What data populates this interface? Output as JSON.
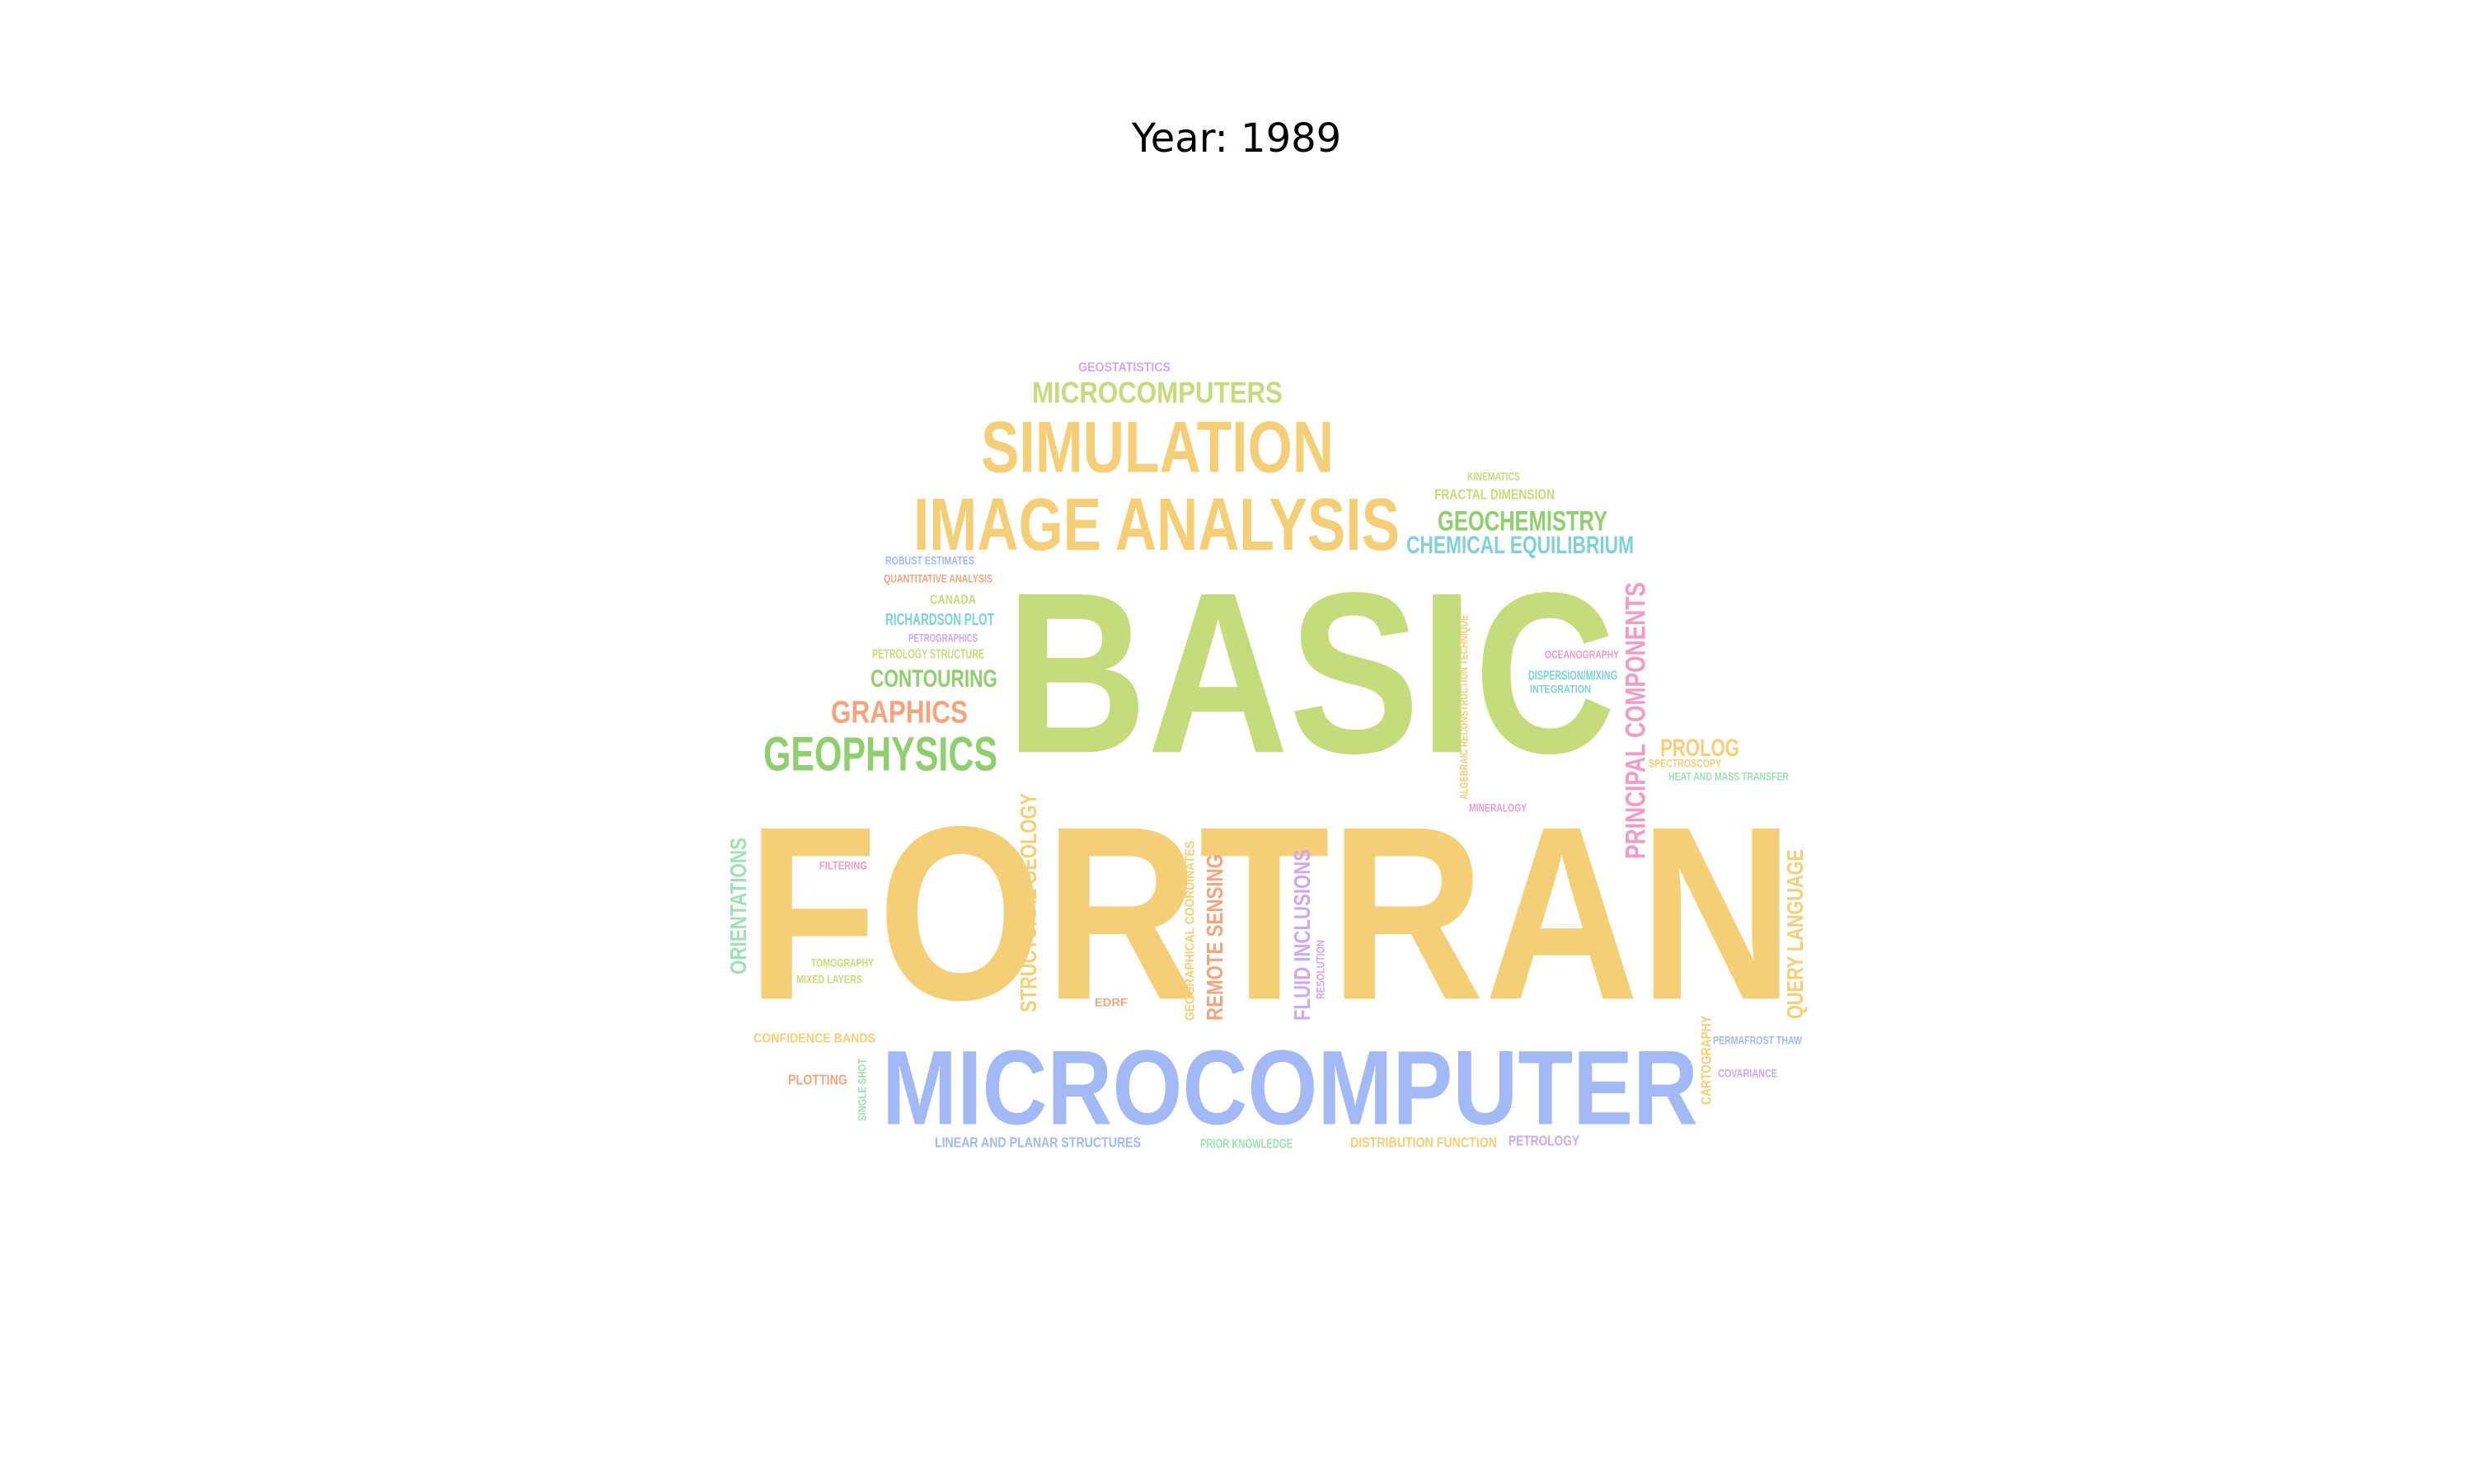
{
  "title": "Year: 1989",
  "palette": {
    "green": "#c5dc7c",
    "yellow": "#f5cf77",
    "blue": "#a3b9f5",
    "dkgreen": "#8fcf6e",
    "orange": "#f5a47d",
    "teal": "#7fd0d8",
    "pink": "#f49ac7",
    "purple": "#cfa7f2",
    "mint": "#9fe0b4"
  },
  "words": [
    {
      "text": "FORTRAN",
      "color": "yellow"
    },
    {
      "text": "BASIC",
      "color": "green"
    },
    {
      "text": "MICROCOMPUTER",
      "color": "blue"
    },
    {
      "text": "IMAGE ANALYSIS",
      "color": "yellow"
    },
    {
      "text": "SIMULATION",
      "color": "yellow"
    },
    {
      "text": "MICROCOMPUTERS",
      "color": "green"
    },
    {
      "text": "GEOSTATISTICS",
      "color": "purple"
    },
    {
      "text": "GEOPHYSICS",
      "color": "dkgreen"
    },
    {
      "text": "GRAPHICS",
      "color": "orange"
    },
    {
      "text": "CONTOURING",
      "color": "dkgreen"
    },
    {
      "text": "GEOCHEMISTRY",
      "color": "dkgreen"
    },
    {
      "text": "CHEMICAL EQUILIBRIUM",
      "color": "teal"
    },
    {
      "text": "FRACTAL DIMENSION",
      "color": "green"
    },
    {
      "text": "KINEMATICS",
      "color": "green"
    },
    {
      "text": "ROBUST ESTIMATES",
      "color": "blue"
    },
    {
      "text": "QUANTITATIVE ANALYSIS",
      "color": "orange"
    },
    {
      "text": "CANADA",
      "color": "green"
    },
    {
      "text": "RICHARDSON PLOT",
      "color": "teal"
    },
    {
      "text": "PETROGRAPHICS",
      "color": "purple"
    },
    {
      "text": "PETROLOGY STRUCTURE",
      "color": "green"
    },
    {
      "text": "PROLOG",
      "color": "yellow"
    },
    {
      "text": "SPECTROSCOPY",
      "color": "yellow"
    },
    {
      "text": "HEAT AND MASS TRANSFER",
      "color": "mint"
    },
    {
      "text": "OCEANOGRAPHY",
      "color": "pink"
    },
    {
      "text": "DISPERSION/MIXING",
      "color": "teal"
    },
    {
      "text": "INTEGRATION",
      "color": "teal"
    },
    {
      "text": "MINERALOGY",
      "color": "pink"
    },
    {
      "text": "PRINCIPAL COMPONENTS",
      "color": "pink"
    },
    {
      "text": "ALGEBRAIC RECONSTRUCTION TECHNIQUE",
      "color": "yellow"
    },
    {
      "text": "ORIENTATIONS",
      "color": "mint"
    },
    {
      "text": "FILTERING",
      "color": "pink"
    },
    {
      "text": "STRUCTURAL GEOLOGY",
      "color": "yellow"
    },
    {
      "text": "GEOGRAPHICAL COORDINATES",
      "color": "yellow"
    },
    {
      "text": "REMOTE SENSING",
      "color": "orange"
    },
    {
      "text": "FLUID INCLUSIONS",
      "color": "purple"
    },
    {
      "text": "RESOLUTION",
      "color": "purple"
    },
    {
      "text": "QUERY LANGUAGE",
      "color": "yellow"
    },
    {
      "text": "TOMOGRAPHY",
      "color": "green"
    },
    {
      "text": "MIXED LAYERS",
      "color": "green"
    },
    {
      "text": "EDRF",
      "color": "orange"
    },
    {
      "text": "CONFIDENCE BANDS",
      "color": "yellow"
    },
    {
      "text": "PLOTTING",
      "color": "orange"
    },
    {
      "text": "SINGLE SHOT",
      "color": "mint"
    },
    {
      "text": "CARTOGRAPHY",
      "color": "yellow"
    },
    {
      "text": "PERMAFROST THAW",
      "color": "blue"
    },
    {
      "text": "COVARIANCE",
      "color": "purple"
    },
    {
      "text": "LINEAR AND PLANAR STRUCTURES",
      "color": "blue"
    },
    {
      "text": "PRIOR KNOWLEDGE",
      "color": "mint"
    },
    {
      "text": "DISTRIBUTION FUNCTION",
      "color": "yellow"
    },
    {
      "text": "PETROLOGY",
      "color": "purple"
    }
  ]
}
